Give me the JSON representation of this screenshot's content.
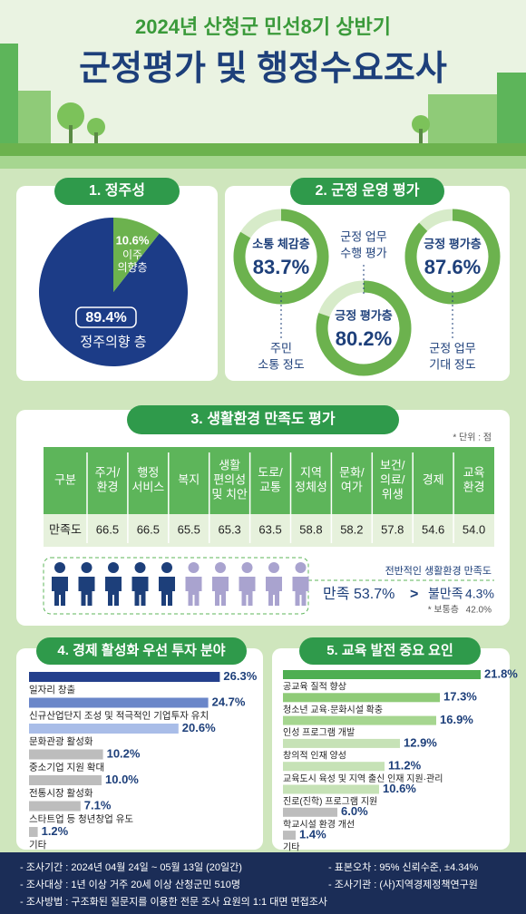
{
  "header": {
    "subtitle": "2024년 산청군 민선8기 상반기",
    "title": "군정평가 및 행정수요조사"
  },
  "residence": {
    "title": "1. 정주성",
    "slices": [
      {
        "label": [
          "정주의향 층"
        ],
        "value": 89.4,
        "value_label": "89.4%",
        "color": "#1c3c87"
      },
      {
        "label": [
          "이주",
          "의향층"
        ],
        "value": 10.6,
        "value_label": "10.6%",
        "color": "#6cb24e"
      }
    ]
  },
  "operation": {
    "title": "2. 군정 운영 평가",
    "rings": [
      {
        "label": "소통 체감층",
        "value": 83.7,
        "value_label": "83.7%",
        "caption": [
          "주민",
          "소통 정도"
        ]
      },
      {
        "label": "긍정 평가층",
        "value": 80.2,
        "value_label": "80.2%",
        "caption": [
          "군정 업무",
          "수행 평가"
        ]
      },
      {
        "label": "긍정 평가층",
        "value": 87.6,
        "value_label": "87.6%",
        "caption": [
          "군정 업무",
          "기대 정도"
        ]
      }
    ]
  },
  "living": {
    "title": "3. 생활환경 만족도 평가",
    "unit": "* 단위 : 점",
    "table": {
      "header": "구분",
      "row_label": "만족도",
      "columns": [
        [
          "주거/",
          "환경"
        ],
        [
          "행정",
          "서비스"
        ],
        [
          "복지"
        ],
        [
          "생활",
          "편의성",
          "및 치안"
        ],
        [
          "도로/",
          "교통"
        ],
        [
          "지역",
          "정체성"
        ],
        [
          "문화/",
          "여가"
        ],
        [
          "보건/",
          "의료/",
          "위생"
        ],
        [
          "경제"
        ],
        [
          "교육",
          "환경"
        ]
      ],
      "values": [
        "66.5",
        "66.5",
        "65.5",
        "65.3",
        "63.5",
        "58.8",
        "58.2",
        "57.8",
        "54.6",
        "54.0"
      ]
    },
    "overall": {
      "title": "전반적인 생활환경 만족도",
      "separator": ">",
      "items": [
        {
          "label": "만족",
          "value": 53.7,
          "value_label": "53.7%"
        },
        {
          "label": "불만족",
          "value": 4.3,
          "value_label": "4.3%"
        },
        {
          "label": "* 보통층",
          "value": 42.0,
          "value_label": "42.0%"
        }
      ]
    }
  },
  "economy": {
    "title": "4. 경제 활성화 우선 투자 분야",
    "bars": [
      {
        "label": "일자리 창출",
        "value": 26.3,
        "value_label": "26.3%",
        "color": "#243f8c"
      },
      {
        "label": "신규산업단지 조성 및 적극적인 기업투자 유치",
        "value": 24.7,
        "value_label": "24.7%",
        "color": "#6a86c9"
      },
      {
        "label": "문화관광 활성화",
        "value": 20.6,
        "value_label": "20.6%",
        "color": "#a9bde8"
      },
      {
        "label": "중소기업 지원 확대",
        "value": 10.2,
        "value_label": "10.2%",
        "color": "#bdbdbd"
      },
      {
        "label": "전통시장 활성화",
        "value": 10.0,
        "value_label": "10.0%",
        "color": "#bdbdbd"
      },
      {
        "label": "스타트업 등 청년창업 유도",
        "value": 7.1,
        "value_label": "7.1%",
        "color": "#bdbdbd"
      },
      {
        "label": "기타",
        "value": 1.2,
        "value_label": "1.2%",
        "color": "#bdbdbd"
      }
    ]
  },
  "education": {
    "title": "5. 교육 발전 중요 요인",
    "bars": [
      {
        "label": "공교육 질적 향상",
        "value": 21.8,
        "value_label": "21.8%",
        "color": "#4fae52"
      },
      {
        "label": "청소년 교육·문화시설 확충",
        "value": 17.3,
        "value_label": "17.3%",
        "color": "#8fcb78"
      },
      {
        "label": "인성 프로그램 개발",
        "value": 16.9,
        "value_label": "16.9%",
        "color": "#a6d690"
      },
      {
        "label": "창의적 인재 양성",
        "value": 12.9,
        "value_label": "12.9%",
        "color": "#c6e2b6"
      },
      {
        "label": "교육도시 육성 및 지역 출신 인재 지원·관리",
        "value": 11.2,
        "value_label": "11.2%",
        "color": "#c6e2b6"
      },
      {
        "label": "진로(진학) 프로그램 지원",
        "value": 10.6,
        "value_label": "10.6%",
        "color": "#c6e2b6"
      },
      {
        "label": "학교시설 환경 개선",
        "value": 6.0,
        "value_label": "6.0%",
        "color": "#bdbdbd"
      },
      {
        "label": "기타",
        "value": 1.4,
        "value_label": "1.4%",
        "color": "#bdbdbd"
      }
    ]
  },
  "footer": {
    "left": [
      "- 조사기간 : 2024년 04월 24일 ~ 05월 13일 (20일간)",
      "- 조사대상 : 1년 이상 거주 20세 이상 산청군민 510명",
      "- 조사방법 : 구조화된 질문지를 이용한 전문 조사 요원의 1:1 대면 면접조사"
    ],
    "right": [
      "- 표본오차 : 95% 신뢰수준, ±4.34%",
      "- 조사기관 : (사)지역경제정책연구원"
    ]
  }
}
